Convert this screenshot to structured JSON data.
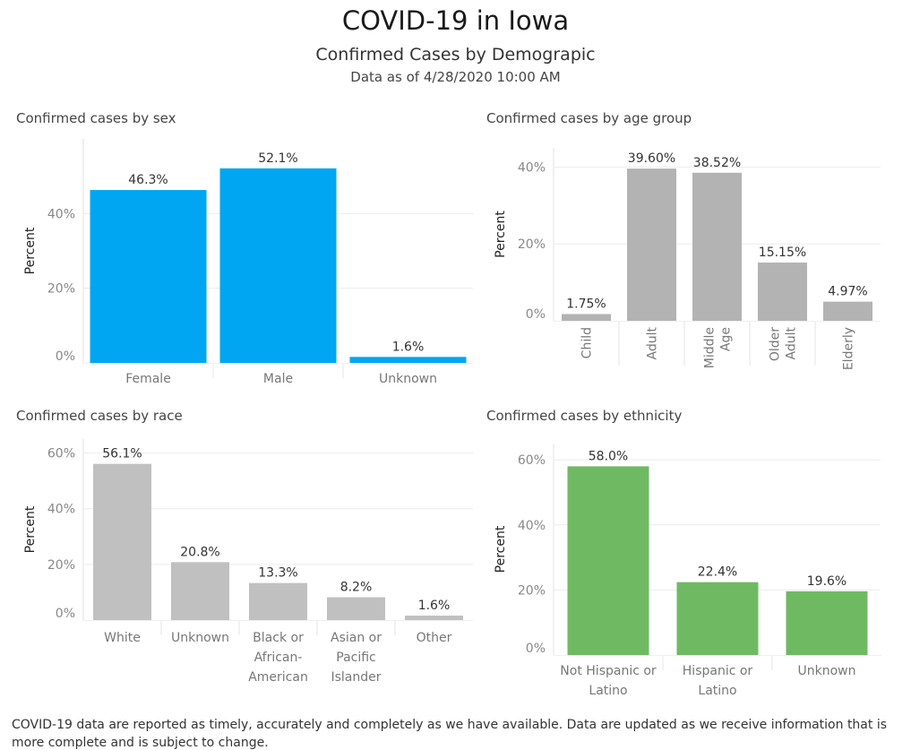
{
  "header": {
    "title": "COVID-19 in Iowa",
    "subtitle": "Confirmed Cases by Demograpic",
    "as_of": "Data as of 4/28/2020 10:00 AM"
  },
  "footer": {
    "note": "COVID-19 data are reported as timely, accurately and completely as we have available.  Data are updated as we receive information that is more complete and is subject to change."
  },
  "chart_data": [
    {
      "id": "sex",
      "type": "bar",
      "title": "Confirmed cases by sex",
      "ylabel": "Percent",
      "xlabel": "",
      "ylim": [
        0,
        60
      ],
      "yticks": [
        0,
        20,
        40
      ],
      "tick_labels": [
        "0%",
        "20%",
        "40%"
      ],
      "categories": [
        [
          "Female"
        ],
        [
          "Male"
        ],
        [
          "Unknown"
        ]
      ],
      "values": [
        46.3,
        52.1,
        1.6
      ],
      "labels": [
        "46.3%",
        "52.1%",
        "1.6%"
      ],
      "color": "#00a6f2",
      "grid": true
    },
    {
      "id": "age",
      "type": "bar",
      "title": "Confirmed cases by age group",
      "ylabel": "Percent",
      "xlabel": "",
      "ylim": [
        0,
        45
      ],
      "yticks": [
        0,
        20,
        40
      ],
      "tick_labels": [
        "0%",
        "20%",
        "40%"
      ],
      "categories": [
        [
          "Child"
        ],
        [
          "Adult"
        ],
        [
          "Middle",
          "Age"
        ],
        [
          "Older",
          "Adult"
        ],
        [
          "Elderly"
        ]
      ],
      "values": [
        1.75,
        39.6,
        38.52,
        15.15,
        4.97
      ],
      "labels": [
        "1.75%",
        "39.60%",
        "38.52%",
        "15.15%",
        "4.97%"
      ],
      "color": "#b3b3b3",
      "rotated_categories": true,
      "grid": true
    },
    {
      "id": "race",
      "type": "bar",
      "title": "Confirmed cases by race",
      "ylabel": "Percent",
      "xlabel": "",
      "ylim": [
        0,
        65
      ],
      "yticks": [
        0,
        20,
        40,
        60
      ],
      "tick_labels": [
        "0%",
        "20%",
        "40%",
        "60%"
      ],
      "categories": [
        [
          "White"
        ],
        [
          "Unknown"
        ],
        [
          "Black or",
          "African-",
          "American"
        ],
        [
          "Asian or",
          "Pacific",
          "Islander"
        ],
        [
          "Other"
        ]
      ],
      "values": [
        56.1,
        20.8,
        13.3,
        8.2,
        1.6
      ],
      "labels": [
        "56.1%",
        "20.8%",
        "13.3%",
        "8.2%",
        "1.6%"
      ],
      "color": "#c0c0c0",
      "grid": true
    },
    {
      "id": "ethnicity",
      "type": "bar",
      "title": "Confirmed cases by ethnicity",
      "ylabel": "Percent",
      "xlabel": "",
      "ylim": [
        0,
        65
      ],
      "yticks": [
        0,
        20,
        40,
        60
      ],
      "tick_labels": [
        "0%",
        "20%",
        "40%",
        "60%"
      ],
      "categories": [
        [
          "Not Hispanic or",
          "Latino"
        ],
        [
          "Hispanic or",
          "Latino"
        ],
        [
          "Unknown"
        ]
      ],
      "values": [
        58.0,
        22.4,
        19.6
      ],
      "labels": [
        "58.0%",
        "22.4%",
        "19.6%"
      ],
      "color": "#70b963",
      "grid": true
    }
  ]
}
